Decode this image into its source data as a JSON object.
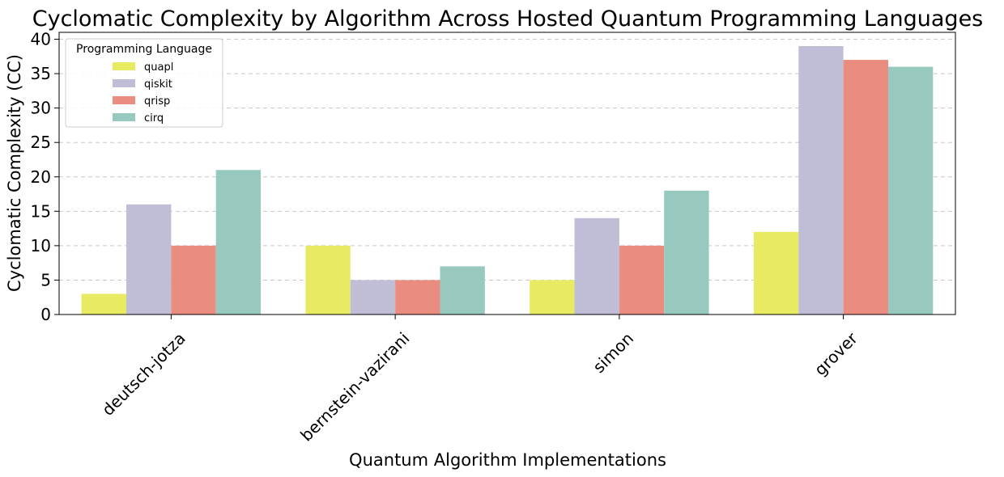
{
  "chart_data": {
    "type": "bar",
    "title": "Cyclomatic Complexity by Algorithm Across Hosted Quantum Programming Languages",
    "xlabel": "Quantum Algorithm Implementations",
    "ylabel": "Cyclomatic Complexity (CC)",
    "categories": [
      "deutsch-jotza",
      "bernstein-vazirani",
      "simon",
      "grover"
    ],
    "series": [
      {
        "name": "quapl",
        "color": "#e8eb62",
        "values": [
          3,
          10,
          5,
          12
        ]
      },
      {
        "name": "qiskit",
        "color": "#c0bed6",
        "values": [
          16,
          5,
          14,
          39
        ]
      },
      {
        "name": "qrisp",
        "color": "#ea8c80",
        "values": [
          10,
          5,
          10,
          37
        ]
      },
      {
        "name": "cirq",
        "color": "#98c9bf",
        "values": [
          21,
          7,
          18,
          36
        ]
      }
    ],
    "ylim": [
      0,
      41
    ],
    "yticks": [
      0,
      5,
      10,
      15,
      20,
      25,
      30,
      35,
      40
    ],
    "grid": "y-dashed",
    "legend": {
      "title": "Programming Language",
      "placement": "top-left"
    }
  }
}
